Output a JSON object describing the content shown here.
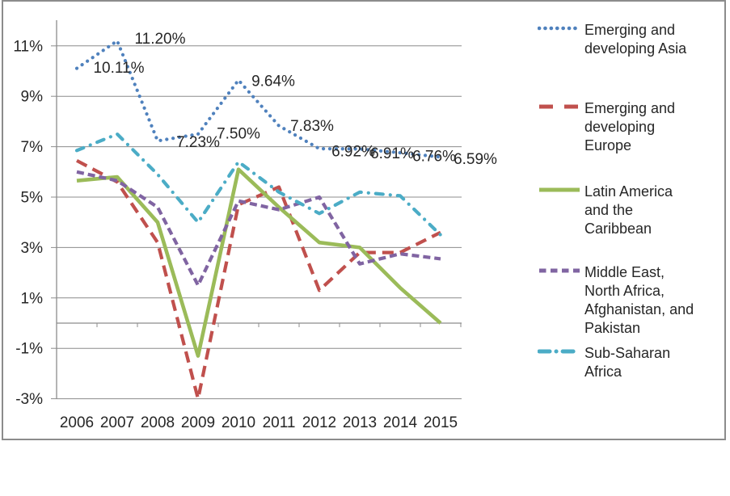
{
  "chart_data": {
    "type": "line",
    "title": "",
    "xlabel": "",
    "ylabel": "",
    "grid": true,
    "legend_position": "right",
    "categories": [
      "2006",
      "2007",
      "2008",
      "2009",
      "2010",
      "2011",
      "2012",
      "2013",
      "2014",
      "2015"
    ],
    "y_axis": {
      "unit": "%",
      "min": -3,
      "max": 12,
      "tick_labels": [
        "11%",
        "9%",
        "7%",
        "5%",
        "3%",
        "1%",
        "-1%",
        "-3%"
      ],
      "tick_values": [
        11,
        9,
        7,
        5,
        3,
        1,
        -1,
        -3
      ]
    },
    "series": [
      {
        "name": "Emerging and developing Asia",
        "label_lines": [
          "Emerging and",
          "developing Asia"
        ],
        "color": "#4F81BD",
        "style": "dotted",
        "values": [
          10.11,
          11.2,
          7.23,
          7.5,
          9.64,
          7.83,
          6.92,
          6.91,
          6.76,
          6.59
        ],
        "data_labels": [
          "10.11%",
          "11.20%",
          "7.23%",
          "7.50%",
          "9.64%",
          "7.83%",
          "6.92%",
          "6.91%",
          "6.76%",
          "6.59%"
        ]
      },
      {
        "name": "Emerging and developing Europe",
        "label_lines": [
          "Emerging and",
          "developing",
          "Europe"
        ],
        "color": "#C0504D",
        "style": "dashed",
        "values": [
          6.45,
          5.6,
          3.2,
          -3.0,
          4.7,
          5.4,
          1.3,
          2.8,
          2.8,
          3.6
        ],
        "data_labels": null
      },
      {
        "name": "Latin America and the Caribbean",
        "label_lines": [
          "Latin America",
          "and the",
          "Caribbean"
        ],
        "color": "#9BBB59",
        "style": "solid",
        "values": [
          5.65,
          5.8,
          4.0,
          -1.3,
          6.1,
          4.6,
          3.2,
          3.0,
          1.4,
          0.0
        ],
        "data_labels": null
      },
      {
        "name": "Middle East, North Africa, Afghanistan, and Pakistan",
        "label_lines": [
          "Middle East,",
          "North Africa,",
          "Afghanistan, and",
          "Pakistan"
        ],
        "color": "#8064A2",
        "style": "dash-medium",
        "values": [
          6.0,
          5.65,
          4.6,
          1.5,
          4.85,
          4.5,
          5.0,
          2.35,
          2.75,
          2.55
        ],
        "data_labels": null
      },
      {
        "name": "Sub-Saharan Africa",
        "label_lines": [
          "Sub-Saharan",
          "Africa"
        ],
        "color": "#4BACC6",
        "style": "dash-dot",
        "values": [
          6.85,
          7.5,
          5.9,
          4.0,
          6.4,
          5.2,
          4.35,
          5.2,
          5.05,
          3.5
        ],
        "data_labels": null
      }
    ]
  }
}
